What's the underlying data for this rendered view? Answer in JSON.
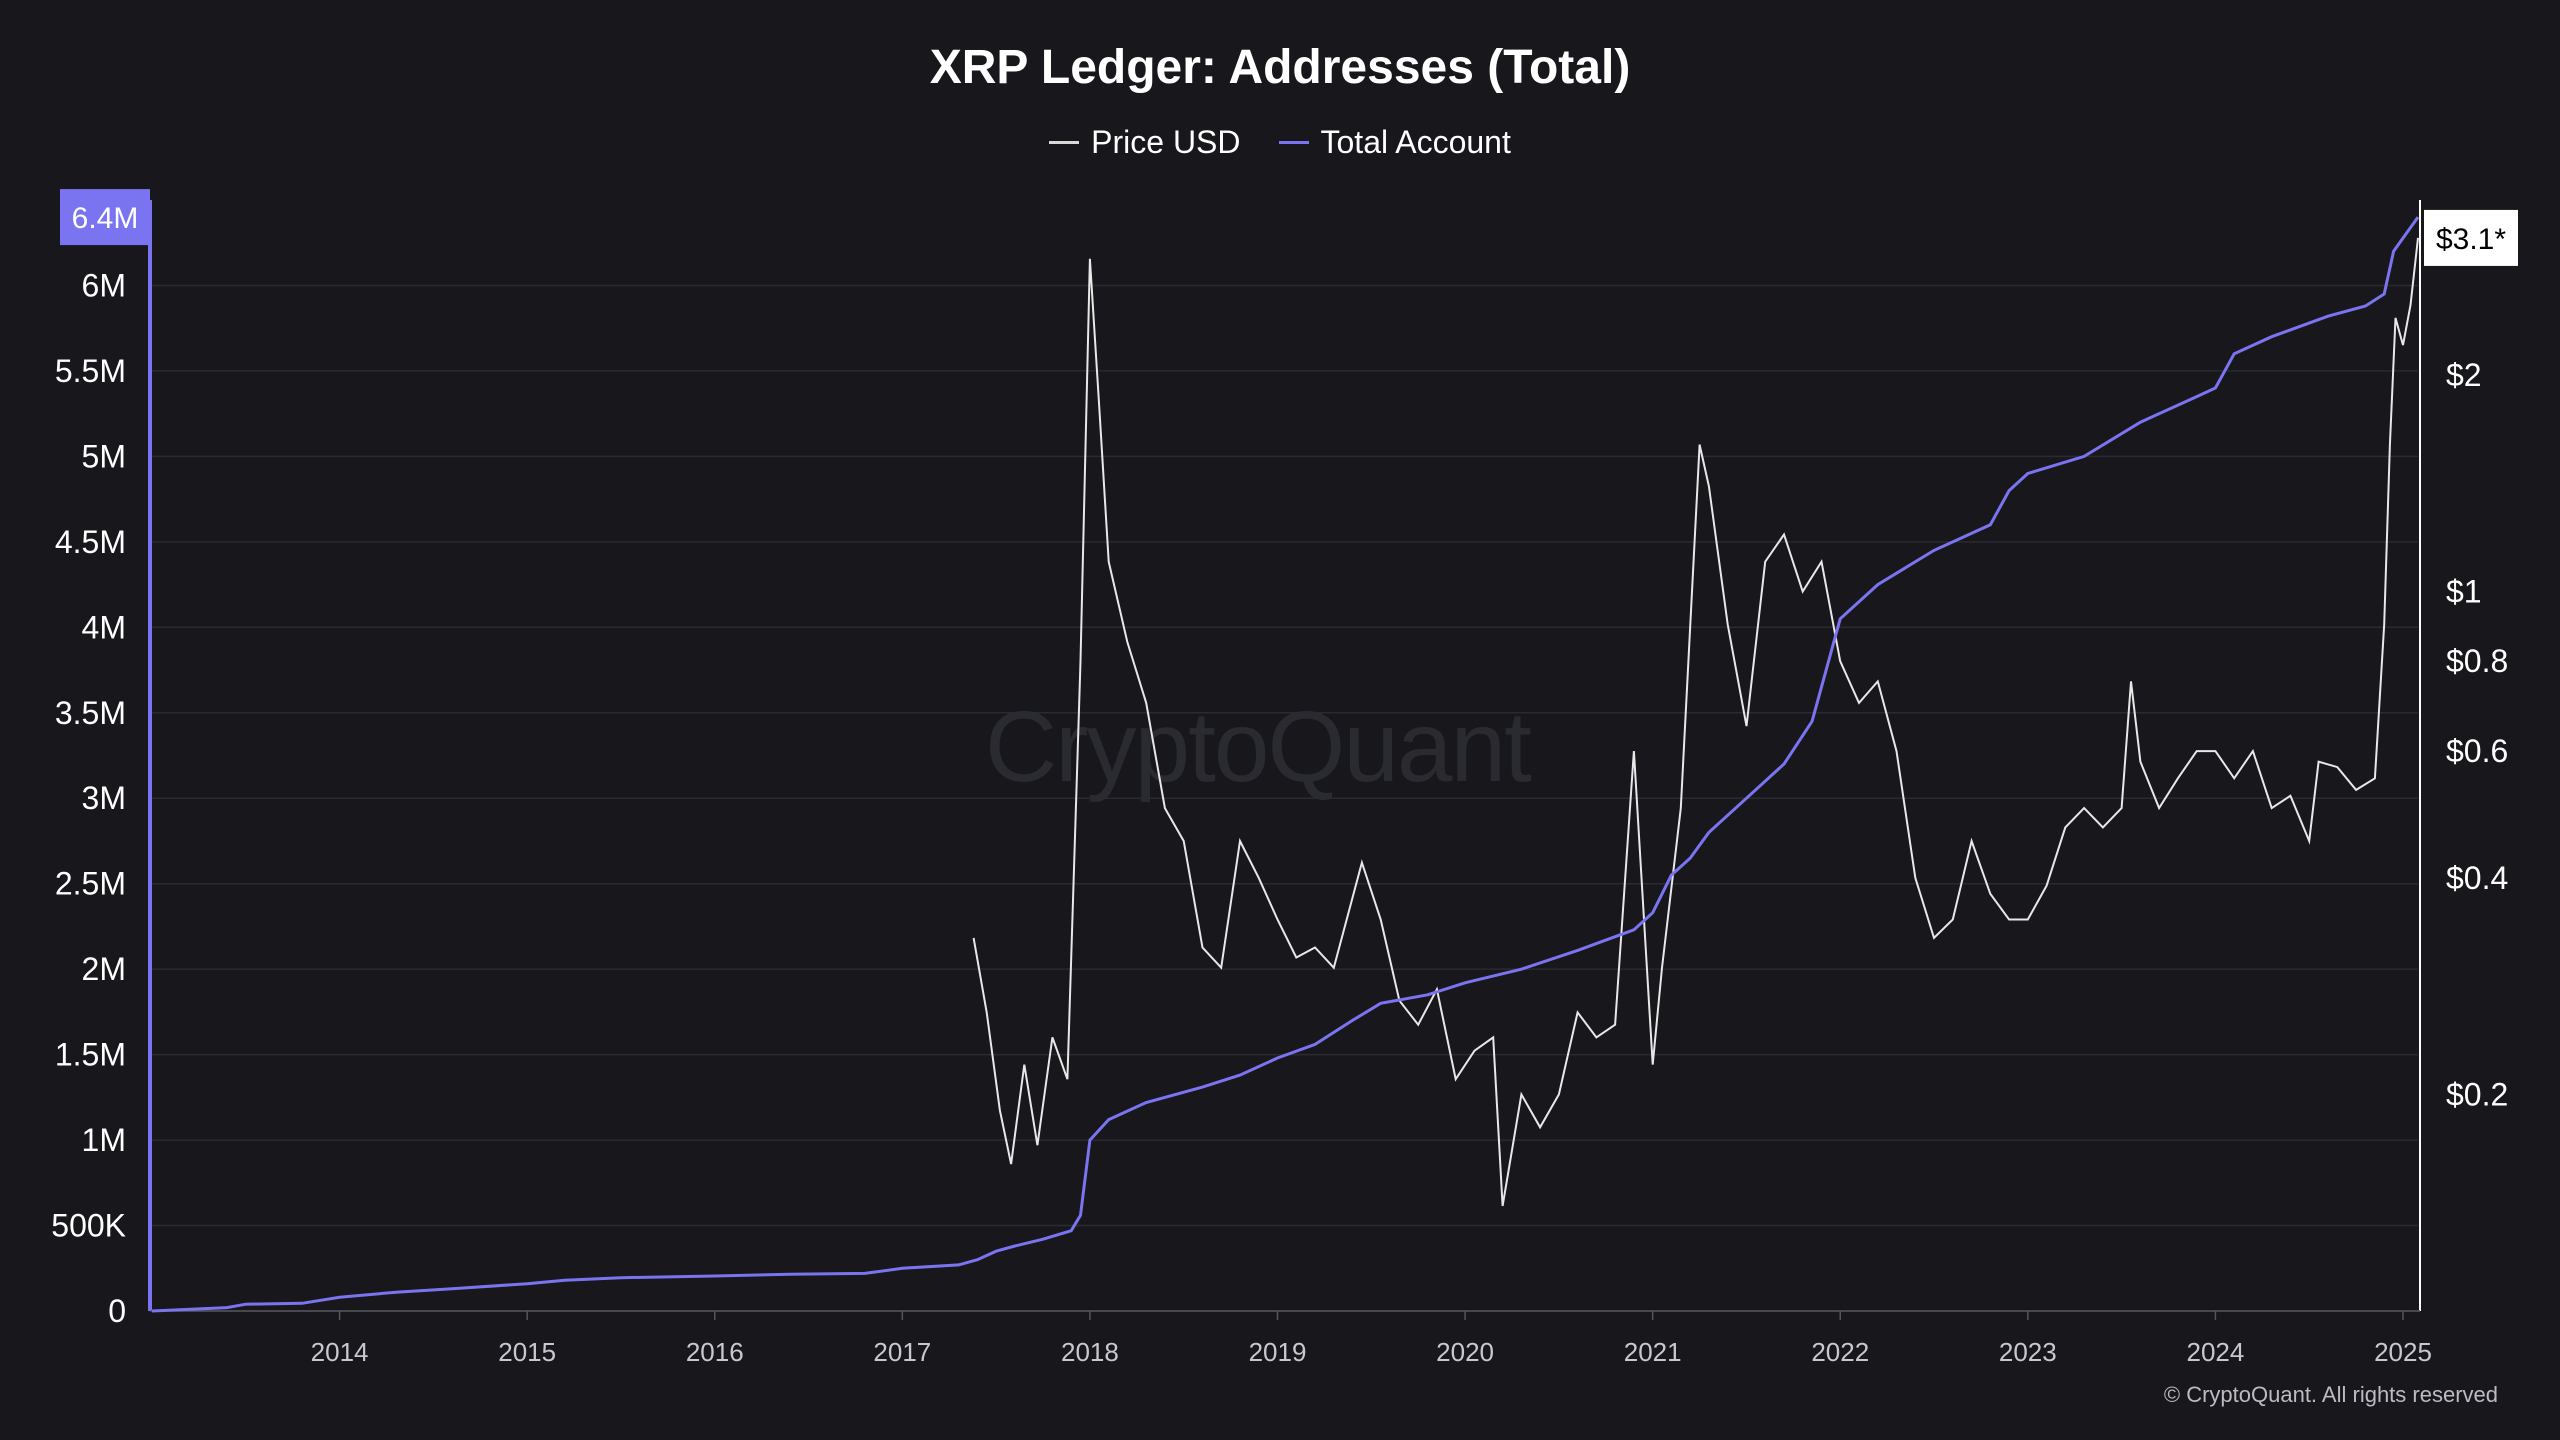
{
  "title": "XRP Ledger: Addresses (Total)",
  "legend": [
    {
      "label": "Price USD",
      "color": "#d8d8d8"
    },
    {
      "label": "Total Account",
      "color": "#7b74f0"
    }
  ],
  "watermark": "CryptoQuant",
  "copyright": "© CryptoQuant. All rights reserved",
  "colors": {
    "background": "#17171c",
    "grid": "#2a2a31",
    "account": "#7b74f0",
    "price": "#e8e8e8"
  },
  "chart_data": {
    "type": "line",
    "x_ticks": [
      "2014",
      "2015",
      "2016",
      "2017",
      "2018",
      "2019",
      "2020",
      "2021",
      "2022",
      "2023",
      "2024",
      "2025"
    ],
    "x_range": [
      2013.0,
      2025.08
    ],
    "left_axis": {
      "range": [
        0,
        6500000
      ],
      "ticks": [
        0,
        500000,
        1000000,
        1500000,
        2000000,
        2500000,
        3000000,
        3500000,
        4000000,
        4500000,
        5000000,
        5500000,
        6000000
      ],
      "tick_labels": [
        "0",
        "500K",
        "1M",
        "1.5M",
        "2M",
        "2.5M",
        "3M",
        "3.5M",
        "4M",
        "4.5M",
        "5M",
        "5.5M",
        "6M"
      ],
      "current_label": "6.4M"
    },
    "right_axis": {
      "scale": "log",
      "range": [
        0.1,
        3.5
      ],
      "ticks": [
        0.2,
        0.4,
        0.6,
        0.8,
        1,
        2
      ],
      "tick_labels": [
        "$0.2",
        "$0.4",
        "$0.6",
        "$0.8",
        "$1",
        "$2"
      ],
      "current_label": "$3.1*"
    },
    "series": [
      {
        "name": "Total Account",
        "axis": "left",
        "points": [
          [
            2013.0,
            0
          ],
          [
            2013.4,
            20000
          ],
          [
            2013.5,
            40000
          ],
          [
            2013.8,
            45000
          ],
          [
            2014.0,
            80000
          ],
          [
            2014.3,
            110000
          ],
          [
            2014.6,
            130000
          ],
          [
            2015.0,
            160000
          ],
          [
            2015.2,
            180000
          ],
          [
            2015.5,
            195000
          ],
          [
            2016.0,
            205000
          ],
          [
            2016.4,
            215000
          ],
          [
            2016.8,
            220000
          ],
          [
            2017.0,
            250000
          ],
          [
            2017.3,
            270000
          ],
          [
            2017.4,
            300000
          ],
          [
            2017.5,
            350000
          ],
          [
            2017.6,
            380000
          ],
          [
            2017.75,
            420000
          ],
          [
            2017.9,
            470000
          ],
          [
            2017.95,
            560000
          ],
          [
            2018.0,
            1000000
          ],
          [
            2018.1,
            1120000
          ],
          [
            2018.3,
            1220000
          ],
          [
            2018.6,
            1310000
          ],
          [
            2018.8,
            1380000
          ],
          [
            2019.0,
            1480000
          ],
          [
            2019.2,
            1560000
          ],
          [
            2019.4,
            1700000
          ],
          [
            2019.55,
            1800000
          ],
          [
            2019.8,
            1850000
          ],
          [
            2020.0,
            1920000
          ],
          [
            2020.3,
            2000000
          ],
          [
            2020.6,
            2110000
          ],
          [
            2020.9,
            2230000
          ],
          [
            2021.0,
            2330000
          ],
          [
            2021.1,
            2550000
          ],
          [
            2021.2,
            2650000
          ],
          [
            2021.3,
            2800000
          ],
          [
            2021.5,
            3000000
          ],
          [
            2021.7,
            3200000
          ],
          [
            2021.85,
            3450000
          ],
          [
            2022.0,
            4050000
          ],
          [
            2022.2,
            4250000
          ],
          [
            2022.5,
            4450000
          ],
          [
            2022.8,
            4600000
          ],
          [
            2022.9,
            4800000
          ],
          [
            2023.0,
            4900000
          ],
          [
            2023.3,
            5000000
          ],
          [
            2023.6,
            5200000
          ],
          [
            2023.9,
            5350000
          ],
          [
            2024.0,
            5400000
          ],
          [
            2024.1,
            5600000
          ],
          [
            2024.3,
            5700000
          ],
          [
            2024.6,
            5820000
          ],
          [
            2024.8,
            5880000
          ],
          [
            2024.9,
            5950000
          ],
          [
            2024.95,
            6200000
          ],
          [
            2025.08,
            6400000
          ]
        ]
      },
      {
        "name": "Price USD",
        "axis": "right",
        "points": [
          [
            2017.38,
            0.33
          ],
          [
            2017.45,
            0.26
          ],
          [
            2017.52,
            0.19
          ],
          [
            2017.58,
            0.16
          ],
          [
            2017.65,
            0.22
          ],
          [
            2017.72,
            0.17
          ],
          [
            2017.8,
            0.24
          ],
          [
            2017.88,
            0.21
          ],
          [
            2017.95,
            0.8
          ],
          [
            2018.0,
            2.9
          ],
          [
            2018.05,
            1.8
          ],
          [
            2018.1,
            1.1
          ],
          [
            2018.2,
            0.85
          ],
          [
            2018.3,
            0.7
          ],
          [
            2018.4,
            0.5
          ],
          [
            2018.5,
            0.45
          ],
          [
            2018.6,
            0.32
          ],
          [
            2018.7,
            0.3
          ],
          [
            2018.8,
            0.45
          ],
          [
            2018.9,
            0.4
          ],
          [
            2019.0,
            0.35
          ],
          [
            2019.1,
            0.31
          ],
          [
            2019.2,
            0.32
          ],
          [
            2019.3,
            0.3
          ],
          [
            2019.45,
            0.42
          ],
          [
            2019.55,
            0.35
          ],
          [
            2019.65,
            0.27
          ],
          [
            2019.75,
            0.25
          ],
          [
            2019.85,
            0.28
          ],
          [
            2019.95,
            0.21
          ],
          [
            2020.05,
            0.23
          ],
          [
            2020.15,
            0.24
          ],
          [
            2020.2,
            0.14
          ],
          [
            2020.3,
            0.2
          ],
          [
            2020.4,
            0.18
          ],
          [
            2020.5,
            0.2
          ],
          [
            2020.6,
            0.26
          ],
          [
            2020.7,
            0.24
          ],
          [
            2020.8,
            0.25
          ],
          [
            2020.9,
            0.6
          ],
          [
            2021.0,
            0.22
          ],
          [
            2021.05,
            0.3
          ],
          [
            2021.15,
            0.5
          ],
          [
            2021.25,
            1.6
          ],
          [
            2021.3,
            1.4
          ],
          [
            2021.4,
            0.9
          ],
          [
            2021.5,
            0.65
          ],
          [
            2021.6,
            1.1
          ],
          [
            2021.7,
            1.2
          ],
          [
            2021.8,
            1.0
          ],
          [
            2021.9,
            1.1
          ],
          [
            2022.0,
            0.8
          ],
          [
            2022.1,
            0.7
          ],
          [
            2022.2,
            0.75
          ],
          [
            2022.3,
            0.6
          ],
          [
            2022.4,
            0.4
          ],
          [
            2022.5,
            0.33
          ],
          [
            2022.6,
            0.35
          ],
          [
            2022.7,
            0.45
          ],
          [
            2022.8,
            0.38
          ],
          [
            2022.9,
            0.35
          ],
          [
            2023.0,
            0.35
          ],
          [
            2023.1,
            0.39
          ],
          [
            2023.2,
            0.47
          ],
          [
            2023.3,
            0.5
          ],
          [
            2023.4,
            0.47
          ],
          [
            2023.5,
            0.5
          ],
          [
            2023.55,
            0.75
          ],
          [
            2023.6,
            0.58
          ],
          [
            2023.7,
            0.5
          ],
          [
            2023.8,
            0.55
          ],
          [
            2023.9,
            0.6
          ],
          [
            2024.0,
            0.6
          ],
          [
            2024.1,
            0.55
          ],
          [
            2024.2,
            0.6
          ],
          [
            2024.3,
            0.5
          ],
          [
            2024.4,
            0.52
          ],
          [
            2024.5,
            0.45
          ],
          [
            2024.55,
            0.58
          ],
          [
            2024.65,
            0.57
          ],
          [
            2024.75,
            0.53
          ],
          [
            2024.85,
            0.55
          ],
          [
            2024.9,
            0.9
          ],
          [
            2024.93,
            1.6
          ],
          [
            2024.96,
            2.4
          ],
          [
            2025.0,
            2.2
          ],
          [
            2025.04,
            2.5
          ],
          [
            2025.08,
            3.1
          ]
        ]
      }
    ]
  }
}
